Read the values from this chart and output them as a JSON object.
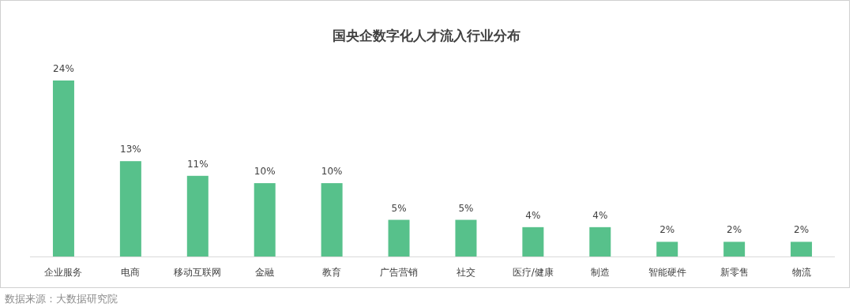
{
  "chart_data": {
    "type": "bar",
    "title": "国央企数字化人才流入行业分布",
    "categories": [
      "企业服务",
      "电商",
      "移动互联网",
      "金融",
      "教育",
      "广告营销",
      "社交",
      "医疗/健康",
      "制造",
      "智能硬件",
      "新零售",
      "物流"
    ],
    "values": [
      24,
      13,
      11,
      10,
      10,
      5,
      5,
      4,
      4,
      2,
      2,
      2
    ],
    "value_labels": [
      "24%",
      "13%",
      "11%",
      "10%",
      "10%",
      "5%",
      "5%",
      "4%",
      "4%",
      "2%",
      "2%",
      "2%"
    ],
    "color": "#57c18b",
    "annotations": [
      "数据来源：大数据研究院"
    ]
  }
}
